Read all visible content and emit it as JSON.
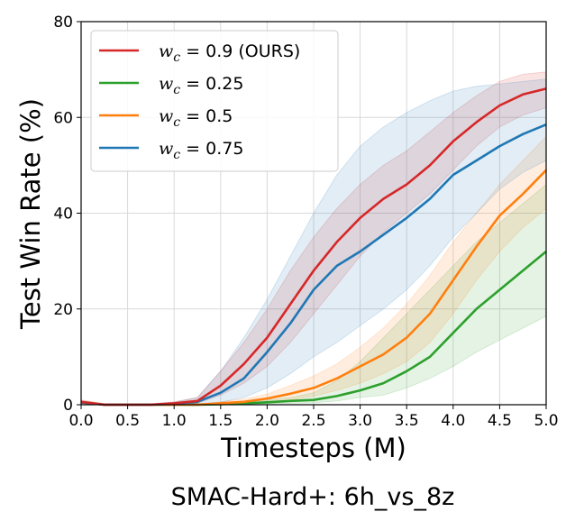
{
  "chart_data": {
    "type": "line",
    "title": "",
    "xlabel": "Timesteps (M)",
    "ylabel": "Test Win Rate (%)",
    "xlim": [
      0,
      5
    ],
    "ylim": [
      0,
      80
    ],
    "xticks": [
      "0.0",
      "0.5",
      "1.0",
      "1.5",
      "2.0",
      "2.5",
      "3.0",
      "3.5",
      "4.0",
      "4.5",
      "5.0"
    ],
    "yticks": [
      "0",
      "20",
      "40",
      "60",
      "80"
    ],
    "grid": true,
    "legend_position": "top-left",
    "caption": "SMAC-Hard+: 6h_vs_8z",
    "x": [
      0,
      0.25,
      0.5,
      0.75,
      1.0,
      1.25,
      1.5,
      1.75,
      2.0,
      2.25,
      2.5,
      2.75,
      3.0,
      3.25,
      3.5,
      3.75,
      4.0,
      4.25,
      4.5,
      4.75,
      5.0
    ],
    "series": [
      {
        "legend_var": "w",
        "legend_sub": "c",
        "legend_rest": " = 0.9 (OURS)",
        "color": "#d62728",
        "values": [
          0.6,
          0,
          0,
          0,
          0.3,
          0.8,
          4,
          8.5,
          14,
          21,
          28,
          34,
          39,
          43,
          46,
          50,
          55,
          59,
          62.5,
          64.8,
          66
        ],
        "lower": [
          0.3,
          0,
          0,
          0,
          0.1,
          0.3,
          2,
          4.5,
          8,
          13,
          19,
          25,
          31,
          36,
          40,
          44,
          49,
          54,
          58,
          60.5,
          62
        ],
        "upper": [
          1,
          0.2,
          0.2,
          0.2,
          0.6,
          1.5,
          7,
          13,
          20,
          28,
          35,
          41,
          46,
          50,
          53,
          57,
          61,
          64.5,
          67.5,
          69,
          69.5
        ]
      },
      {
        "legend_var": "w",
        "legend_sub": "c",
        "legend_rest": " = 0.25",
        "color": "#2ca02c",
        "values": [
          0.5,
          0,
          0,
          0,
          0,
          0,
          0.1,
          0.3,
          0.5,
          0.8,
          1,
          1.8,
          3,
          4.5,
          7,
          10,
          15,
          20,
          24,
          28,
          32
        ],
        "lower": [
          0.2,
          0,
          0,
          0,
          0,
          0,
          0,
          0.1,
          0.2,
          0.3,
          0.4,
          0.8,
          1.5,
          2,
          3.5,
          5.5,
          8,
          11,
          13.5,
          16,
          18.5
        ],
        "upper": [
          0.8,
          0.2,
          0.2,
          0.2,
          0.2,
          0.2,
          0.3,
          0.6,
          1,
          1.5,
          2.5,
          5,
          9,
          14,
          19,
          24,
          29,
          34,
          38,
          42,
          46
        ]
      },
      {
        "legend_var": "w",
        "legend_sub": "c",
        "legend_rest": " = 0.5",
        "color": "#ff7f0e",
        "values": [
          0.5,
          0,
          0,
          0,
          0,
          0,
          0.3,
          0.6,
          1.3,
          2.3,
          3.5,
          5.5,
          8,
          10.5,
          14,
          19,
          26,
          33,
          39.5,
          44,
          49
        ],
        "lower": [
          0.2,
          0,
          0,
          0,
          0,
          0,
          0.1,
          0.3,
          0.6,
          1,
          1.8,
          3,
          4.5,
          6.5,
          9,
          13,
          19,
          26,
          32,
          37,
          41
        ],
        "upper": [
          0.8,
          0.2,
          0.2,
          0.2,
          0.2,
          0.2,
          0.6,
          1.2,
          2.2,
          4,
          6,
          8.5,
          12,
          16,
          21,
          27,
          34,
          40,
          46,
          51,
          56
        ]
      },
      {
        "legend_var": "w",
        "legend_sub": "c",
        "legend_rest": " = 0.75",
        "color": "#1f77b4",
        "values": [
          0.5,
          0,
          0,
          0,
          0.2,
          0.6,
          2.5,
          5.5,
          11,
          17,
          24,
          29,
          32,
          35.5,
          39,
          43,
          48,
          51,
          54,
          56.5,
          58.5
        ],
        "lower": [
          0.2,
          0,
          0,
          0,
          0,
          0.1,
          0.5,
          1.5,
          3.5,
          6.5,
          10,
          13,
          16.5,
          20,
          24,
          29,
          35,
          40,
          45,
          48.5,
          51
        ],
        "upper": [
          0.8,
          0.2,
          0.2,
          0.2,
          0.5,
          1.5,
          7,
          14,
          22,
          31,
          40,
          48,
          54,
          58,
          61,
          63.5,
          65.5,
          66.5,
          67,
          67.5,
          68
        ]
      }
    ]
  }
}
